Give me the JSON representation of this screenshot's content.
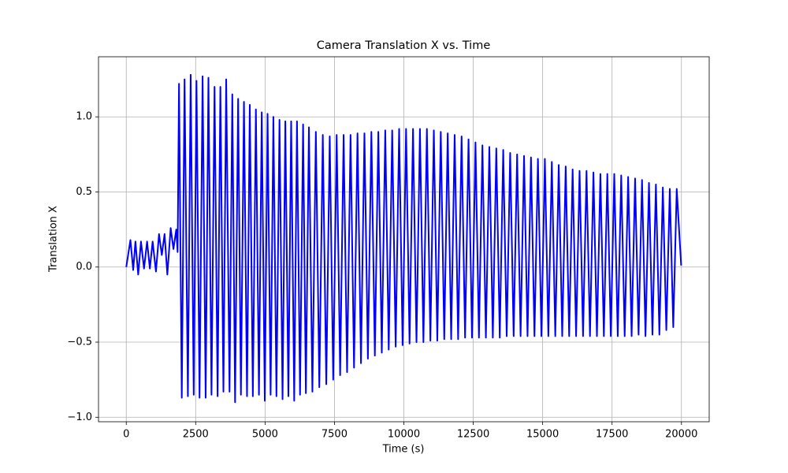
{
  "chart_data": {
    "type": "line",
    "title": "Camera Translation X vs. Time",
    "xlabel": "Time (s)",
    "ylabel": "Translation X",
    "color": "#0000ff",
    "grid": true,
    "xlim": [
      -1000,
      21000
    ],
    "ylim": [
      -1.03,
      1.4
    ],
    "xticks": [
      0,
      2500,
      5000,
      7500,
      10000,
      12500,
      15000,
      17500,
      20000
    ],
    "yticks": [
      {
        "value": -1.0,
        "label": "−1.0"
      },
      {
        "value": -0.5,
        "label": "−0.5"
      },
      {
        "value": 0.0,
        "label": "0.0"
      },
      0.5,
      {
        "value": 1.0,
        "label": "1.0"
      }
    ],
    "x": [
      0,
      150,
      250,
      330,
      430,
      530,
      640,
      750,
      850,
      950,
      1070,
      1180,
      1280,
      1380,
      1480,
      1600,
      1700,
      1800,
      1850,
      1900,
      2000,
      2100,
      2220,
      2320,
      2430,
      2530,
      2640,
      2750,
      2860,
      2960,
      3070,
      3180,
      3290,
      3390,
      3500,
      3600,
      3720,
      3820,
      3920,
      4030,
      4130,
      4240,
      4350,
      4450,
      4560,
      4670,
      4780,
      4880,
      4990,
      5090,
      5200,
      5300,
      5410,
      5520,
      5630,
      5730,
      5840,
      5940,
      6050,
      6150,
      6260,
      6370,
      6470,
      6580,
      6705,
      6830,
      6955,
      7080,
      7205,
      7330,
      7455,
      7580,
      7705,
      7830,
      7955,
      8080,
      8205,
      8330,
      8455,
      8580,
      8705,
      8830,
      8955,
      9080,
      9205,
      9330,
      9455,
      9580,
      9705,
      9830,
      9955,
      10080,
      10205,
      10330,
      10455,
      10580,
      10705,
      10830,
      10955,
      11080,
      11205,
      11330,
      11455,
      11580,
      11705,
      11830,
      11955,
      12080,
      12205,
      12330,
      12455,
      12580,
      12705,
      12830,
      12955,
      13080,
      13205,
      13330,
      13455,
      13580,
      13705,
      13830,
      13955,
      14080,
      14205,
      14330,
      14455,
      14580,
      14705,
      14830,
      14955,
      15080,
      15205,
      15330,
      15455,
      15580,
      15705,
      15830,
      15955,
      16080,
      16205,
      16330,
      16455,
      16580,
      16705,
      16830,
      16955,
      17080,
      17205,
      17330,
      17455,
      17580,
      17705,
      17830,
      17955,
      18080,
      18205,
      18330,
      18455,
      18580,
      18705,
      18830,
      18955,
      19080,
      19205,
      19330,
      19455,
      19580,
      19705,
      19830,
      19990
    ],
    "values": [
      0.0,
      0.18,
      -0.02,
      0.17,
      -0.05,
      0.17,
      -0.01,
      0.17,
      -0.01,
      0.17,
      -0.03,
      0.22,
      0.08,
      0.22,
      -0.05,
      0.26,
      0.12,
      0.25,
      0.1,
      1.22,
      -0.87,
      1.25,
      -0.86,
      1.28,
      -0.85,
      1.24,
      -0.87,
      1.27,
      -0.87,
      1.26,
      -0.85,
      1.2,
      -0.86,
      1.2,
      -0.83,
      1.25,
      -0.83,
      1.15,
      -0.9,
      1.12,
      -0.85,
      1.1,
      -0.86,
      1.08,
      -0.86,
      1.05,
      -0.85,
      1.03,
      -0.89,
      1.02,
      -0.85,
      1.0,
      -0.86,
      0.98,
      -0.88,
      0.97,
      -0.86,
      0.97,
      -0.89,
      0.97,
      -0.85,
      0.95,
      -0.84,
      0.93,
      -0.83,
      0.9,
      -0.8,
      0.88,
      -0.78,
      0.87,
      -0.75,
      0.88,
      -0.72,
      0.88,
      -0.7,
      0.88,
      -0.67,
      0.89,
      -0.64,
      0.89,
      -0.61,
      0.9,
      -0.59,
      0.9,
      -0.57,
      0.91,
      -0.55,
      0.91,
      -0.53,
      0.92,
      -0.52,
      0.92,
      -0.51,
      0.92,
      -0.5,
      0.92,
      -0.5,
      0.92,
      -0.49,
      0.91,
      -0.49,
      0.9,
      -0.48,
      0.89,
      -0.48,
      0.88,
      -0.48,
      0.87,
      -0.47,
      0.85,
      -0.47,
      0.83,
      -0.47,
      0.81,
      -0.47,
      0.8,
      -0.47,
      0.79,
      -0.47,
      0.78,
      -0.46,
      0.76,
      -0.46,
      0.75,
      -0.46,
      0.74,
      -0.46,
      0.73,
      -0.46,
      0.72,
      -0.46,
      0.72,
      -0.46,
      0.7,
      -0.46,
      0.68,
      -0.46,
      0.67,
      -0.46,
      0.65,
      -0.46,
      0.64,
      -0.46,
      0.64,
      -0.46,
      0.63,
      -0.46,
      0.62,
      -0.46,
      0.62,
      -0.46,
      0.62,
      -0.46,
      0.61,
      -0.46,
      0.6,
      -0.46,
      0.59,
      -0.45,
      0.58,
      -0.46,
      0.56,
      -0.45,
      0.55,
      -0.45,
      0.53,
      -0.42,
      0.52,
      -0.4,
      0.52,
      0.01
    ]
  }
}
